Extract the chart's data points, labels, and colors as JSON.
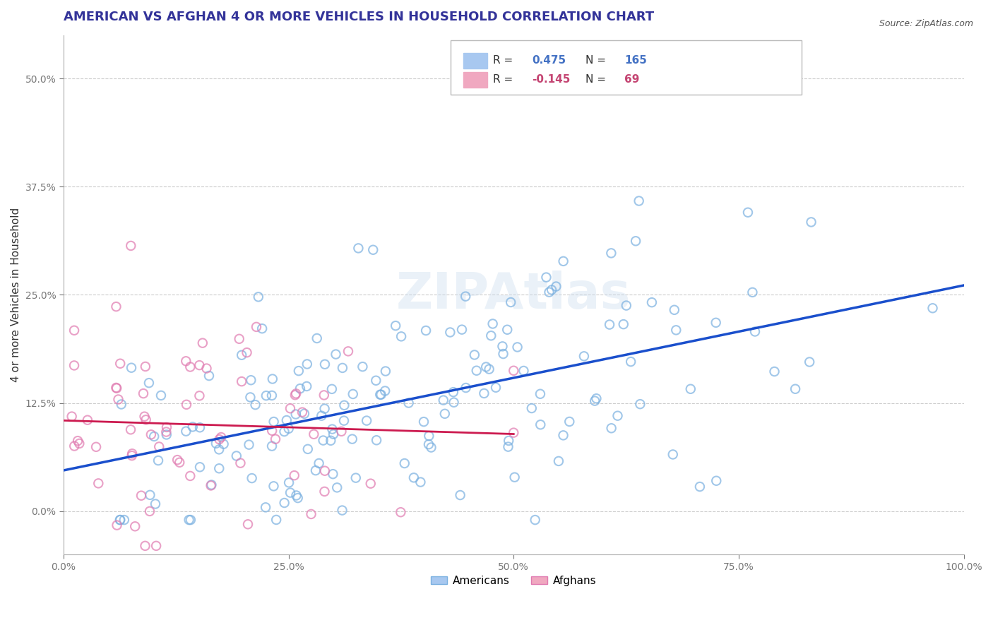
{
  "title": "AMERICAN VS AFGHAN 4 OR MORE VEHICLES IN HOUSEHOLD CORRELATION CHART",
  "source": "Source: ZipAtlas.com",
  "ylabel": "4 or more Vehicles in Household",
  "xlabel": "",
  "xlim": [
    0.0,
    1.0
  ],
  "ylim": [
    -0.05,
    0.55
  ],
  "xticks": [
    0.0,
    0.25,
    0.5,
    0.75,
    1.0
  ],
  "xticklabels": [
    "0.0%",
    "25.0%",
    "50.0%",
    "75.0%",
    "100.0%"
  ],
  "yticks": [
    0.0,
    0.125,
    0.25,
    0.375,
    0.5
  ],
  "yticklabels": [
    "0.0%",
    "12.5%",
    "25.0%",
    "37.5%",
    "50.0%"
  ],
  "legend_entries": [
    {
      "label": "R =  0.475   N = 165",
      "color": "#a8c8f0",
      "text_color": "#4472c4"
    },
    {
      "label": "R = -0.145   N =  69",
      "color": "#f0a8c0",
      "text_color": "#c44472"
    }
  ],
  "americans_color": "#7ab0e0",
  "afghans_color": "#e07ab0",
  "regression_american_color": "#1a4fcc",
  "regression_afghan_color": "#cc1a4f",
  "regression_afghan_dash": true,
  "background_color": "#ffffff",
  "grid_color": "#cccccc",
  "watermark": "ZIPAtlas",
  "title_fontsize": 13,
  "axis_fontsize": 11,
  "tick_fontsize": 10,
  "R_american": 0.475,
  "N_american": 165,
  "R_afghan": -0.145,
  "N_afghan": 69,
  "american_seed": 42,
  "afghan_seed": 7
}
